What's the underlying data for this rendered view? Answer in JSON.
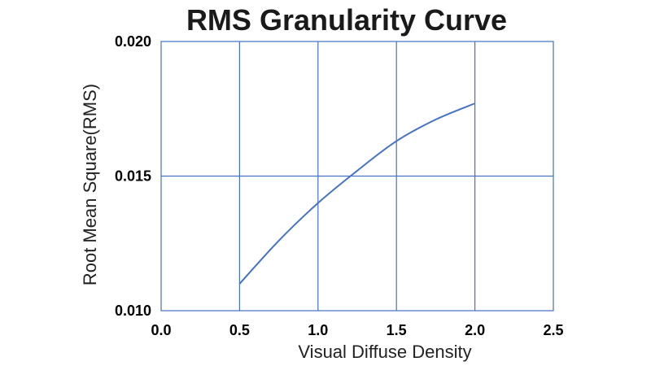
{
  "chart_data": {
    "type": "line",
    "title": "RMS Granularity Curve",
    "xlabel": "Visual Diffuse Density",
    "ylabel": "Root Mean Square(RMS)",
    "xlim": [
      0.0,
      2.5
    ],
    "ylim": [
      0.01,
      0.02
    ],
    "x_ticks": [
      "0.0",
      "0.5",
      "1.0",
      "1.5",
      "2.0",
      "2.5"
    ],
    "y_ticks": [
      "0.010",
      "0.015",
      "0.020"
    ],
    "grid": true,
    "legend": "none",
    "colors": {
      "series": "#4472c4",
      "grid": "#4472c4"
    },
    "series": [
      {
        "x": [
          0.5,
          0.75,
          1.0,
          1.25,
          1.5,
          1.75,
          2.0
        ],
        "y": [
          0.011,
          0.0126,
          0.014,
          0.0152,
          0.0163,
          0.0171,
          0.0177
        ]
      }
    ]
  }
}
